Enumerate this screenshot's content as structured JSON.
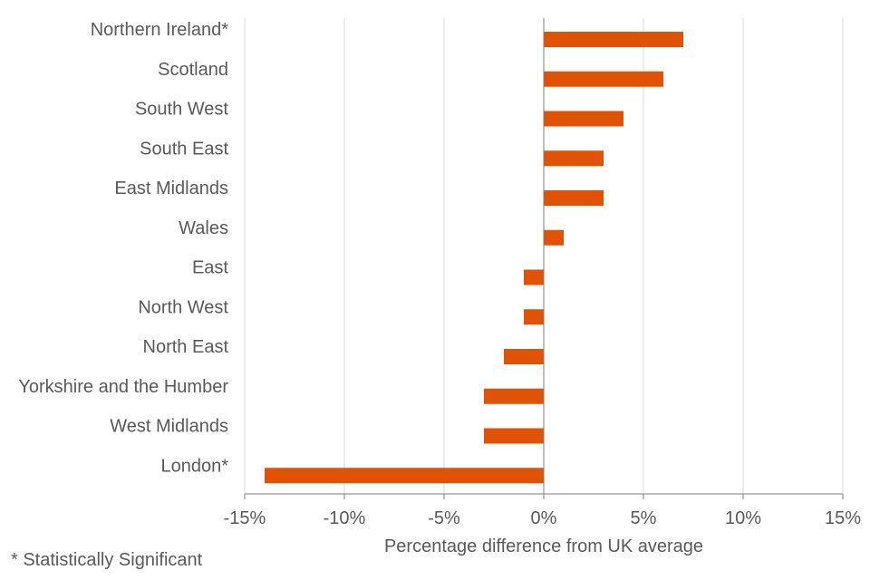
{
  "chart_data": {
    "type": "bar",
    "orientation": "horizontal",
    "categories": [
      "Northern Ireland*",
      "Scotland",
      "South West",
      "South East",
      "East Midlands",
      "Wales",
      "East",
      "North West",
      "North East",
      "Yorkshire and the Humber",
      "West Midlands",
      "London*"
    ],
    "values": [
      7,
      6,
      4,
      3,
      3,
      1,
      -1,
      -1,
      -2,
      -3,
      -3,
      -14
    ],
    "xlim": [
      -15,
      15
    ],
    "xticks": [
      -15,
      -10,
      -5,
      0,
      5,
      10,
      15
    ],
    "tick_labels": [
      "-15%",
      "-10%",
      "-5%",
      "0%",
      "5%",
      "10%",
      "15%"
    ],
    "title": "",
    "xlabel": "Percentage difference from UK average",
    "ylabel": "",
    "grid": true,
    "legend": "none",
    "bar_color": "#e05206",
    "footnote": "* Statistically Significant"
  }
}
